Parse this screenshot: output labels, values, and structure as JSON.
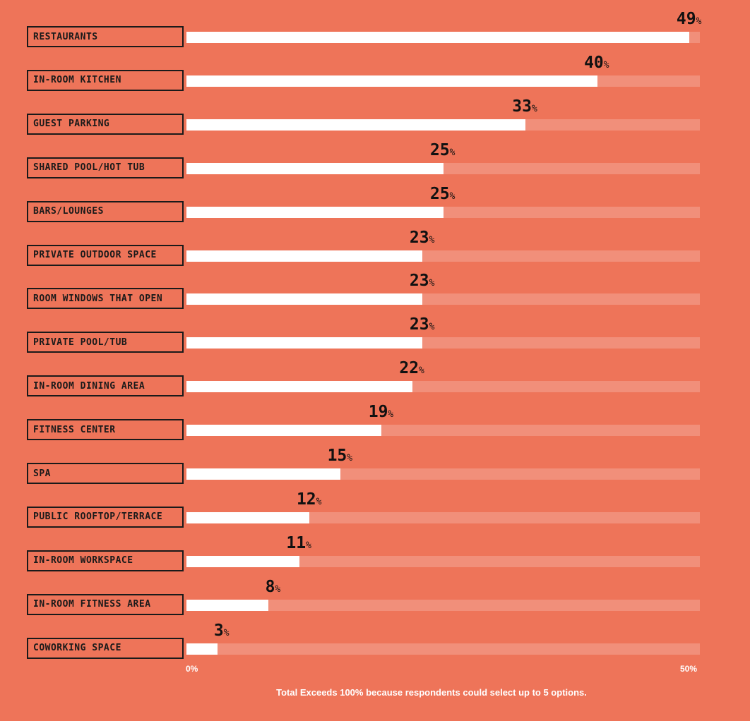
{
  "chart_data": {
    "type": "bar",
    "orientation": "horizontal",
    "categories": [
      "RESTAURANTS",
      "IN-ROOM KITCHEN",
      "GUEST PARKING",
      "SHARED POOL/HOT TUB",
      "BARS/LOUNGES",
      "PRIVATE OUTDOOR SPACE",
      "ROOM WINDOWS THAT OPEN",
      "PRIVATE POOL/TUB",
      "IN-ROOM DINING AREA",
      "FITNESS CENTER",
      "SPA",
      "PUBLIC ROOFTOP/TERRACE",
      "IN-ROOM WORKSPACE",
      "IN-ROOM FITNESS AREA",
      "COWORKING SPACE"
    ],
    "values": [
      49,
      40,
      33,
      25,
      25,
      23,
      23,
      23,
      22,
      19,
      15,
      12,
      11,
      8,
      3
    ],
    "value_suffix": "%",
    "xlim": [
      0,
      50
    ],
    "tick_labels": [
      "0%",
      "50%"
    ],
    "footnote": "Total Exceeds 100% because respondents could select up to 5 options.",
    "colors": {
      "background": "#ee7459",
      "bar": "#ffffff",
      "track": "#f39580",
      "text": "#111111"
    }
  }
}
